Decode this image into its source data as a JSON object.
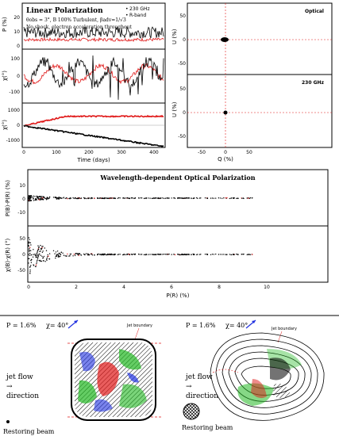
{
  "panel_top": {
    "title": "Linear Polarization",
    "subtitle1": "θobs = 3°, B 100% Turbulent, βadv=1/√3",
    "subtitle2": "No shock, electron acceleration throughout",
    "legend": [
      "230 GHz",
      "R-band"
    ],
    "ylabel_p": "P (%)",
    "ylabel_chi": "χ(°)",
    "ylabel_chi2": "χ(°)",
    "xlabel": "Time (days)",
    "xticks": [
      "0",
      "100",
      "200",
      "300",
      "400"
    ],
    "p_ticks": [
      "0",
      "10",
      "20"
    ],
    "chi_ticks": [
      "-100",
      "0",
      "100"
    ],
    "chi2_ticks": [
      "-1000",
      "0",
      "1000"
    ]
  },
  "panel_qu": {
    "optical_label": "Optical",
    "radio_label": "230 GHz",
    "ylabel": "U (%)",
    "xlabel": "Q (%)",
    "yticks": [
      "-50",
      "0",
      "50"
    ],
    "xticks": [
      "-50",
      "0",
      "50"
    ]
  },
  "panel_mid": {
    "title": "Wavelength-dependent Optical Polarization",
    "ylabel_top": "P(B)-P(R) (%)",
    "ylabel_bot": "χ(B)-χ(R) (°)",
    "xlabel": "P(R) (%)",
    "xticks": [
      "0",
      "2",
      "4",
      "6",
      "8",
      "10"
    ],
    "yticks_top": [
      "-10",
      "0",
      "10"
    ],
    "yticks_bot": [
      "-50",
      "0",
      "50"
    ]
  },
  "panel_maps": {
    "left_p": "P = 1.6%",
    "left_chi": "χ= 40°",
    "right_p": "P = 1.6%",
    "right_chi": "χ= 40°",
    "jet_boundary": "Jet boundary",
    "jet_flow_left": "jet flow",
    "direction_left": "direction",
    "jet_flow_right": "jet flow",
    "direction_right": "direction",
    "beam_left": "Restoring beam",
    "beam_right": "Restoring beam"
  },
  "colors": {
    "red": "#e01818",
    "green": "#22b822",
    "blue": "#2030e0",
    "black": "#000000"
  }
}
